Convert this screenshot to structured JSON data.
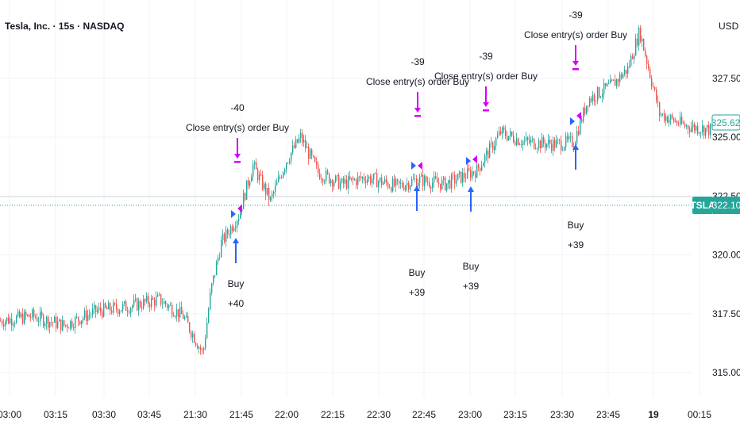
{
  "header": {
    "title": "Tesla, Inc. · 15s · NASDAQ",
    "currency": "USD"
  },
  "price_tags": {
    "last_price": "325.62",
    "symbol": "TSLA",
    "symbol_price": "322.10"
  },
  "colors": {
    "up": "#26a69a",
    "down": "#ef5350",
    "buy": "#2962ff",
    "close": "#d500f9",
    "last_price": "#26a69a",
    "grid": "#f0f3fa"
  },
  "annotations": [
    {
      "kind": "close",
      "label": "Close entry(s) order Buy",
      "qty": "-40"
    },
    {
      "kind": "close",
      "label": "Close entry(s) order Buy",
      "qty": "-39"
    },
    {
      "kind": "close",
      "label": "Close entry(s) order Buy",
      "qty": "-39"
    },
    {
      "kind": "close",
      "label": "Close entry(s) order Buy",
      "qty": "-39"
    },
    {
      "kind": "buy",
      "label": "Buy",
      "qty": "+40"
    },
    {
      "kind": "buy",
      "label": "Buy",
      "qty": "+39"
    },
    {
      "kind": "buy",
      "label": "Buy",
      "qty": "+39"
    },
    {
      "kind": "buy",
      "label": "Buy",
      "qty": "+39"
    }
  ],
  "chart_data": {
    "type": "candlestick",
    "y_ticks": [
      "327.50",
      "325.00",
      "322.50",
      "320.00",
      "317.50",
      "315.00"
    ],
    "x_ticks": [
      "03:00",
      "03:15",
      "03:30",
      "03:45",
      "21:30",
      "21:45",
      "22:00",
      "22:15",
      "22:30",
      "22:45",
      "23:00",
      "23:15",
      "23:30",
      "23:45",
      "19",
      "00:15"
    ],
    "price_waypoints": [
      [
        0,
        317.2
      ],
      [
        40,
        317.4
      ],
      [
        80,
        317.0
      ],
      [
        120,
        317.6
      ],
      [
        160,
        317.8
      ],
      [
        200,
        318.1
      ],
      [
        230,
        317.4
      ],
      [
        255,
        315.8
      ],
      [
        265,
        318.5
      ],
      [
        278,
        320.5
      ],
      [
        300,
        321.7
      ],
      [
        318,
        323.8
      ],
      [
        340,
        322.3
      ],
      [
        360,
        324.0
      ],
      [
        378,
        325.0
      ],
      [
        400,
        323.5
      ],
      [
        430,
        323.0
      ],
      [
        460,
        323.3
      ],
      [
        500,
        322.9
      ],
      [
        525,
        323.2
      ],
      [
        560,
        323.0
      ],
      [
        600,
        323.6
      ],
      [
        630,
        325.2
      ],
      [
        660,
        324.8
      ],
      [
        700,
        324.7
      ],
      [
        722,
        324.8
      ],
      [
        740,
        326.6
      ],
      [
        770,
        327.2
      ],
      [
        790,
        327.9
      ],
      [
        805,
        329.5
      ],
      [
        830,
        326.0
      ],
      [
        860,
        325.5
      ],
      [
        895,
        325.3
      ]
    ]
  }
}
